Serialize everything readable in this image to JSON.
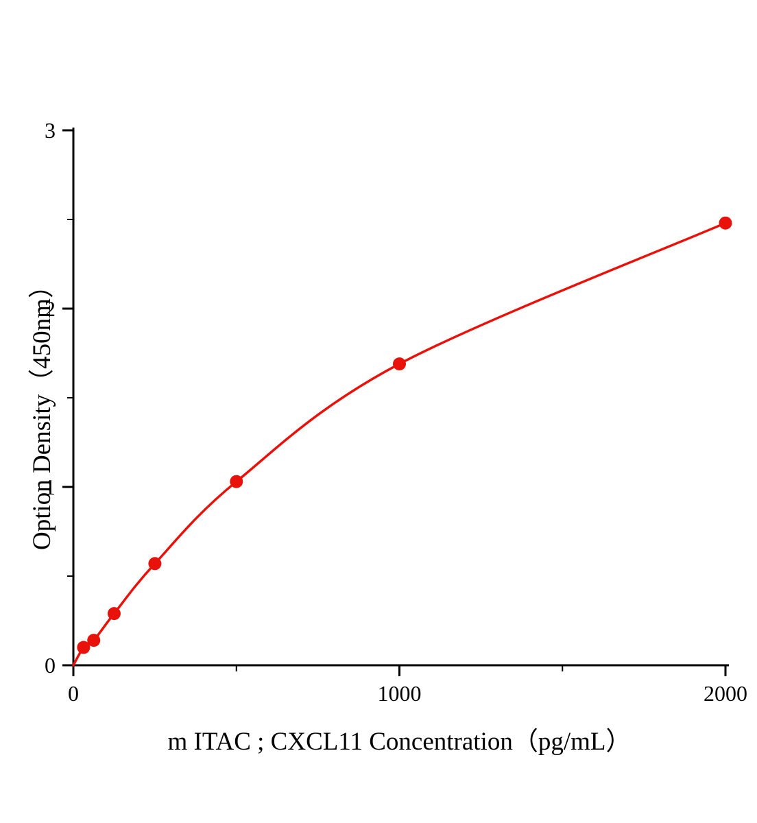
{
  "chart_data": {
    "type": "line",
    "title": "",
    "xlabel": "m ITAC ; CXCL11 Concentration（pg/mL）",
    "ylabel": "Option Density（450nm）",
    "x": [
      0,
      31.25,
      62.5,
      125,
      250,
      500,
      1000,
      2000
    ],
    "y": [
      0,
      0.1,
      0.14,
      0.29,
      0.57,
      1.03,
      1.69,
      2.48
    ],
    "marker_points": {
      "x": [
        31.25,
        62.5,
        125,
        250,
        500,
        1000,
        2000
      ],
      "y": [
        0.1,
        0.14,
        0.29,
        0.57,
        1.03,
        1.69,
        2.48
      ]
    },
    "xlim": [
      0,
      2000
    ],
    "ylim": [
      0,
      3
    ],
    "xticks_major": [
      0,
      1000,
      2000
    ],
    "xticks_minor": [
      500,
      1500
    ],
    "yticks_major": [
      0,
      1,
      2,
      3
    ],
    "yticks_minor": [
      0.5,
      1.5,
      2.5
    ],
    "grid": false,
    "legend_position": "none",
    "line_color": "#e8120a",
    "marker_color": "#e8120a",
    "axis_color": "#000000"
  }
}
